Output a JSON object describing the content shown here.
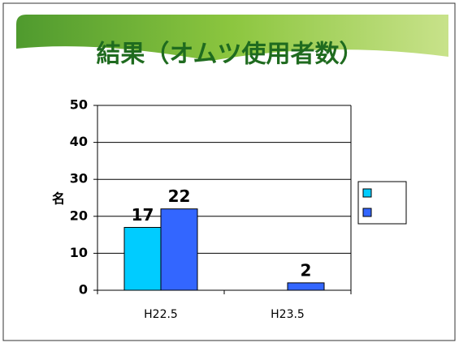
{
  "chart_data": {
    "type": "bar",
    "title": "結果（オムツ使用者数）",
    "y_label": "名",
    "categories": [
      "H22.5",
      "H23.5"
    ],
    "series": [
      {
        "color": "#00ccff",
        "values": [
          17,
          null
        ]
      },
      {
        "color": "#3366ff",
        "values": [
          22,
          2
        ]
      }
    ],
    "ylim": [
      0,
      50
    ],
    "yticks": [
      0,
      10,
      20,
      30,
      40,
      50
    ],
    "grid": true,
    "legend": "right"
  }
}
